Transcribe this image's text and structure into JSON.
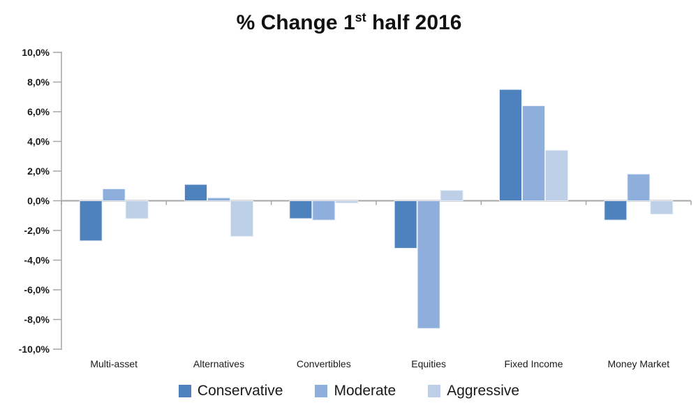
{
  "chart_data": {
    "type": "bar",
    "title": "% Change 1st half 2016",
    "title_parts": {
      "prefix": "% Change 1",
      "superscript": "st",
      "suffix": " half 2016"
    },
    "categories": [
      "Multi-asset",
      "Alternatives",
      "Convertibles",
      "Equities",
      "Fixed Income",
      "Money Market"
    ],
    "series": [
      {
        "name": "Conservative",
        "color": "#4E82BE",
        "values": [
          -2.7,
          1.1,
          -1.2,
          -3.2,
          7.5,
          -1.3
        ]
      },
      {
        "name": "Moderate",
        "color": "#8EAEDC",
        "values": [
          0.8,
          0.2,
          -1.3,
          -8.6,
          6.4,
          1.8
        ]
      },
      {
        "name": "Aggressive",
        "color": "#BECFE8",
        "values": [
          -1.2,
          -2.4,
          -0.15,
          0.7,
          3.4,
          -0.9
        ]
      }
    ],
    "ylim": [
      -10,
      10
    ],
    "y_tick_values": [
      10,
      8,
      6,
      4,
      2,
      0,
      -2,
      -4,
      -6,
      -8,
      -10
    ],
    "y_ticks": [
      "10,0%",
      "8,0%",
      "6,0%",
      "4,0%",
      "2,0%",
      "0,0%",
      "-2,0%",
      "-4,0%",
      "-6,0%",
      "-8,0%",
      "-10,0%"
    ],
    "grid": false,
    "legend_position": "bottom",
    "axis_color": "#A6A6A6",
    "bar_border_color": "#E6EDF7",
    "text_color": "#1a1a1a"
  }
}
